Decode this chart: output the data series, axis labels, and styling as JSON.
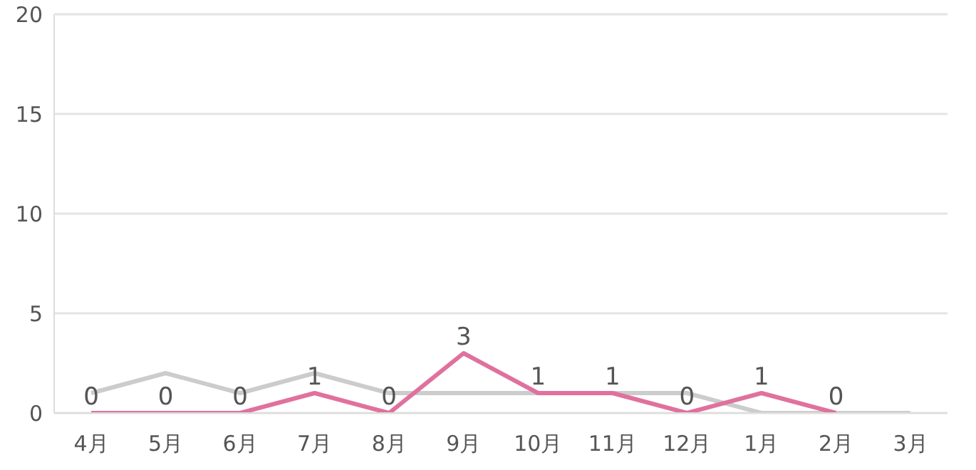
{
  "chart_data": {
    "type": "line",
    "categories": [
      "4月",
      "5月",
      "6月",
      "7月",
      "8月",
      "9月",
      "10月",
      "11月",
      "12月",
      "1月",
      "2月",
      "3月"
    ],
    "series": [
      {
        "color": "#cccccc",
        "values": [
          1,
          2,
          1,
          2,
          1,
          1,
          1,
          1,
          1,
          0,
          0,
          0
        ]
      },
      {
        "color": "#e0719e",
        "values": [
          0,
          0,
          0,
          1,
          0,
          3,
          1,
          1,
          0,
          1,
          0,
          null
        ],
        "value_labels": [
          "0",
          "0",
          "0",
          "1",
          "0",
          "3",
          "1",
          "1",
          "0",
          "1",
          "0",
          null
        ]
      }
    ],
    "ylim": [
      0,
      20
    ],
    "yticks": [
      0,
      5,
      10,
      15,
      20
    ],
    "grid": "y",
    "legend": false,
    "marker": "none",
    "line_style": "solid"
  }
}
